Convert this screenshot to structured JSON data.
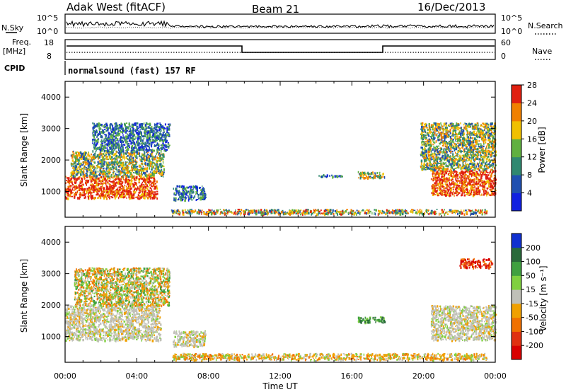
{
  "header": {
    "station": "Adak West (fitACF)",
    "beam": "Beam 21",
    "date": "16/Dec/2013"
  },
  "strip_panels": {
    "nsky_label": "N.Sky",
    "nsearch_label": "N.Search",
    "noise_ticks": [
      "10^5",
      "10^0"
    ],
    "freq_label": [
      "Freq.",
      "[MHz]"
    ],
    "freq_ticks": [
      "18",
      "8"
    ],
    "nave_label": "Nave",
    "nave_ticks": [
      "60",
      "0"
    ],
    "cpid_label": "CPID",
    "cpid_text": "normalsound (fast) 157 RF"
  },
  "axes": {
    "ylabel": "Slant Range [km]",
    "xlabel": "Time UT",
    "yticks": [
      "1000",
      "2000",
      "3000",
      "4000"
    ],
    "xticks": [
      "00:00",
      "04:00",
      "08:00",
      "12:00",
      "16:00",
      "20:00",
      "00:00"
    ]
  },
  "colorbars": {
    "power": {
      "label": "Power [dB]",
      "ticks": [
        "4",
        "8",
        "12",
        "16",
        "20",
        "24",
        "28"
      ],
      "colors": [
        "#1020e0",
        "#2050b0",
        "#308870",
        "#60b040",
        "#f0c000",
        "#f08000",
        "#e02010"
      ]
    },
    "velocity": {
      "label": "Velocity [m s⁻¹]",
      "ticks": [
        "200",
        "100",
        "50",
        "15",
        "-15",
        "-50",
        "-100",
        "-200"
      ],
      "colors": [
        "#1030d0",
        "#2a6a3a",
        "#40a040",
        "#80d040",
        "#c0c0b8",
        "#f0a000",
        "#f07000",
        "#e03010",
        "#d80000"
      ]
    }
  },
  "chart_data": [
    {
      "type": "heatmap",
      "name": "Power",
      "x_range_hours": [
        0,
        24
      ],
      "y_range_km": [
        180,
        4500
      ],
      "regions": [
        {
          "t0": 0.0,
          "t1": 5.1,
          "r0": 800,
          "r1": 1500,
          "level": "high"
        },
        {
          "t0": 0.3,
          "t1": 5.5,
          "r0": 1500,
          "r1": 2300,
          "level": "mid"
        },
        {
          "t0": 1.5,
          "t1": 5.8,
          "r0": 2300,
          "r1": 3200,
          "level": "low"
        },
        {
          "t0": 6.0,
          "t1": 7.8,
          "r0": 750,
          "r1": 1200,
          "level": "low"
        },
        {
          "t0": 5.9,
          "t1": 23.5,
          "r0": 300,
          "r1": 450,
          "level": "mixed"
        },
        {
          "t0": 14.0,
          "t1": 15.5,
          "r0": 1480,
          "r1": 1560,
          "level": "low"
        },
        {
          "t0": 16.3,
          "t1": 17.8,
          "r0": 1450,
          "r1": 1650,
          "level": "mid"
        },
        {
          "t0": 20.4,
          "t1": 24.0,
          "r0": 900,
          "r1": 1700,
          "level": "high"
        },
        {
          "t0": 19.8,
          "t1": 24.0,
          "r0": 1700,
          "r1": 3200,
          "level": "mid"
        }
      ]
    },
    {
      "type": "heatmap",
      "name": "Velocity",
      "x_range_hours": [
        0,
        24
      ],
      "y_range_km": [
        180,
        4500
      ],
      "regions": [
        {
          "t0": 0.0,
          "t1": 5.3,
          "r0": 900,
          "r1": 2000,
          "level": "ground"
        },
        {
          "t0": 0.5,
          "t1": 5.8,
          "r0": 2000,
          "r1": 3200,
          "level": "mixed"
        },
        {
          "t0": 6.0,
          "t1": 7.8,
          "r0": 700,
          "r1": 1200,
          "level": "ground"
        },
        {
          "t0": 5.9,
          "t1": 23.5,
          "r0": 280,
          "r1": 480,
          "level": "negative"
        },
        {
          "t0": 16.3,
          "t1": 17.8,
          "r0": 1450,
          "r1": 1650,
          "level": "positive"
        },
        {
          "t0": 20.4,
          "t1": 24.0,
          "r0": 900,
          "r1": 2000,
          "level": "ground"
        },
        {
          "t0": 22.0,
          "t1": 23.8,
          "r0": 3200,
          "r1": 3500,
          "level": "strong-negative"
        }
      ]
    }
  ]
}
